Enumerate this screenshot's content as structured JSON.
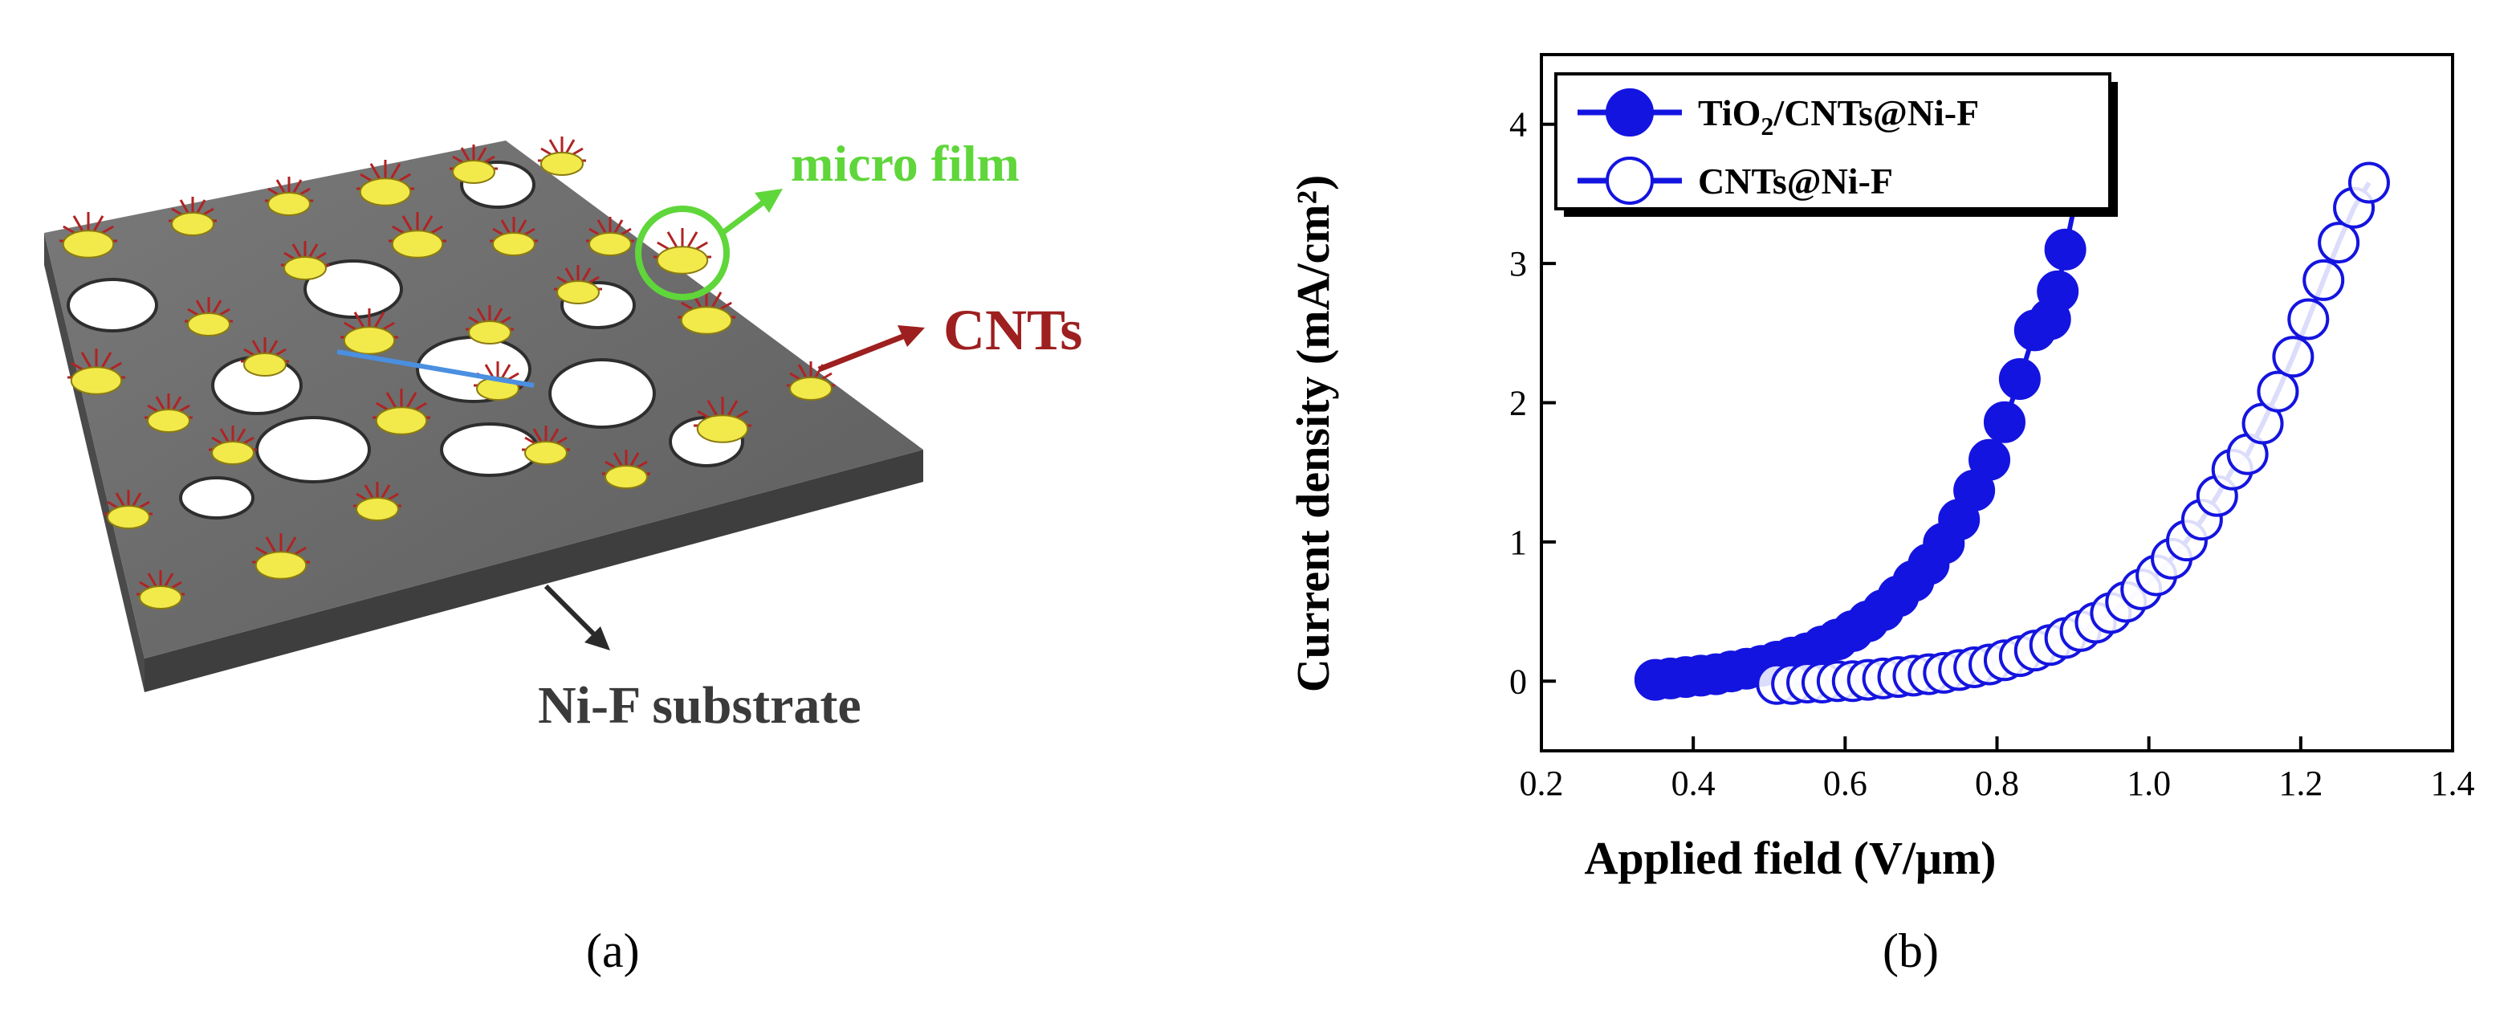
{
  "colors": {
    "substrate_top": "#6f6f6f",
    "substrate_side": "#3e3e3e",
    "cnt_yellow": "#f2ea4a",
    "cnt_red": "#b02323",
    "micro_film_green": "#5fd63a",
    "cnts_label_red": "#9e1f1f",
    "highlight_blue": "#4a8fe0",
    "series_blue": "#1414e0"
  },
  "panel_a": {
    "labels": {
      "micro_film": "micro film",
      "cnts": "CNTs",
      "substrate": "Ni-F substrate"
    },
    "caption": "(a)"
  },
  "panel_b": {
    "caption": "(b)"
  },
  "chart_data": {
    "type": "line",
    "xlabel": "Applied field (V/μm)",
    "ylabel": "Current density (mA/cm²)",
    "xlim": [
      0.2,
      1.4
    ],
    "ylim": [
      -0.5,
      4.5
    ],
    "xticks": [
      0.2,
      0.4,
      0.6,
      0.8,
      1.0,
      1.2,
      1.4
    ],
    "yticks": [
      0,
      1,
      2,
      3,
      4
    ],
    "xtick_labels": [
      "0.2",
      "0.4",
      "0.6",
      "0.8",
      "1.0",
      "1.2",
      "1.4"
    ],
    "ytick_labels": [
      "0",
      "1",
      "2",
      "3",
      "4"
    ],
    "grid": false,
    "legend_position": "top-left",
    "series": [
      {
        "name": "TiO₂/CNTs@Ni-F",
        "name_main": "TiO",
        "name_sub": "2",
        "name_rest": "/CNTs@Ni-F",
        "marker": "filled-circle",
        "color": "#1414e0",
        "x": [
          0.35,
          0.37,
          0.39,
          0.41,
          0.43,
          0.45,
          0.47,
          0.49,
          0.51,
          0.53,
          0.55,
          0.57,
          0.59,
          0.61,
          0.63,
          0.65,
          0.67,
          0.69,
          0.71,
          0.73,
          0.75,
          0.77,
          0.79,
          0.81,
          0.83,
          0.85,
          0.87,
          0.88,
          0.89,
          0.93
        ],
        "y": [
          0.01,
          0.02,
          0.03,
          0.04,
          0.05,
          0.07,
          0.09,
          0.11,
          0.14,
          0.17,
          0.2,
          0.25,
          0.3,
          0.36,
          0.43,
          0.51,
          0.61,
          0.72,
          0.84,
          0.99,
          1.16,
          1.37,
          1.59,
          1.86,
          2.17,
          2.52,
          2.6,
          2.8,
          3.1,
          4.15
        ]
      },
      {
        "name": "CNTs@Ni-F",
        "marker": "open-circle",
        "color": "#1414e0",
        "x": [
          0.51,
          0.53,
          0.55,
          0.57,
          0.59,
          0.61,
          0.63,
          0.65,
          0.67,
          0.69,
          0.71,
          0.73,
          0.75,
          0.77,
          0.79,
          0.81,
          0.83,
          0.85,
          0.87,
          0.89,
          0.91,
          0.93,
          0.95,
          0.97,
          0.99,
          1.01,
          1.03,
          1.05,
          1.07,
          1.09,
          1.11,
          1.13,
          1.15,
          1.17,
          1.19,
          1.21,
          1.23,
          1.25,
          1.27,
          1.29
        ],
        "y": [
          -0.02,
          -0.02,
          -0.01,
          -0.01,
          0.0,
          0.0,
          0.01,
          0.02,
          0.03,
          0.04,
          0.05,
          0.06,
          0.08,
          0.1,
          0.12,
          0.15,
          0.18,
          0.22,
          0.26,
          0.31,
          0.36,
          0.42,
          0.49,
          0.57,
          0.66,
          0.76,
          0.88,
          1.01,
          1.16,
          1.33,
          1.52,
          1.63,
          1.85,
          2.08,
          2.33,
          2.6,
          2.88,
          3.15,
          3.4,
          3.58
        ]
      }
    ]
  }
}
